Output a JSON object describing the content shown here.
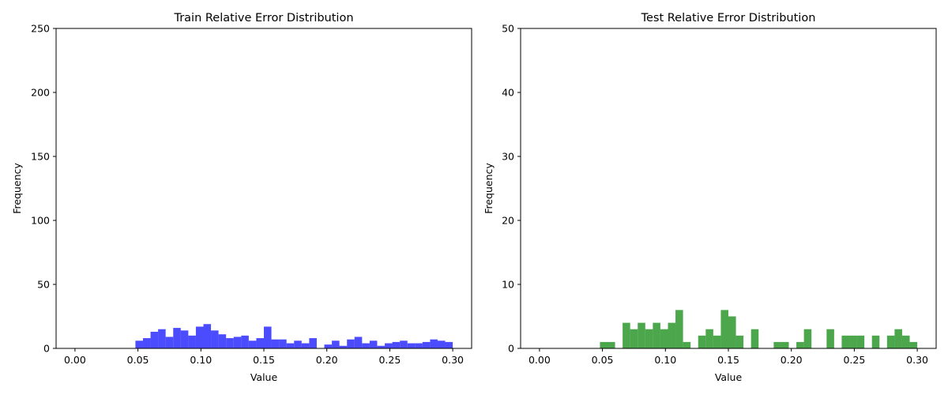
{
  "chart_data": [
    {
      "type": "bar",
      "title": "Train Relative Error Distribution",
      "xlabel": "Value",
      "ylabel": "Frequency",
      "xlim": [
        -0.015,
        0.315
      ],
      "ylim": [
        0,
        250
      ],
      "bar_color": "#0000ff",
      "bar_opacity": 0.7,
      "bin_width": 0.006,
      "x_ticks": [
        "0.00",
        "0.05",
        "0.10",
        "0.15",
        "0.20",
        "0.25",
        "0.30"
      ],
      "x_tick_values": [
        0.0,
        0.05,
        0.1,
        0.15,
        0.2,
        0.25,
        0.3
      ],
      "y_ticks": [
        "0",
        "50",
        "100",
        "150",
        "200",
        "250"
      ],
      "y_tick_values": [
        0,
        50,
        100,
        150,
        200,
        250
      ],
      "bin_starts": [
        0.048,
        0.054,
        0.06,
        0.066,
        0.072,
        0.078,
        0.084,
        0.09,
        0.096,
        0.102,
        0.108,
        0.114,
        0.12,
        0.126,
        0.132,
        0.138,
        0.144,
        0.15,
        0.156,
        0.162,
        0.168,
        0.174,
        0.18,
        0.186,
        0.192,
        0.198,
        0.204,
        0.21,
        0.216,
        0.222,
        0.228,
        0.234,
        0.24,
        0.246,
        0.252,
        0.258,
        0.264,
        0.27,
        0.276,
        0.282,
        0.288,
        0.294
      ],
      "values": [
        6,
        8,
        13,
        15,
        9,
        16,
        14,
        10,
        17,
        19,
        14,
        11,
        8,
        9,
        10,
        6,
        8,
        17,
        7,
        7,
        4,
        6,
        4,
        8,
        0,
        3,
        6,
        2,
        7,
        9,
        4,
        6,
        2,
        4,
        5,
        6,
        4,
        4,
        5,
        7,
        6,
        5
      ]
    },
    {
      "type": "bar",
      "title": "Test Relative Error Distribution",
      "xlabel": "Value",
      "ylabel": "Frequency",
      "xlim": [
        -0.015,
        0.315
      ],
      "ylim": [
        0,
        50
      ],
      "bar_color": "#008000",
      "bar_opacity": 0.7,
      "bin_width": 0.006,
      "x_ticks": [
        "0.00",
        "0.05",
        "0.10",
        "0.15",
        "0.20",
        "0.25",
        "0.30"
      ],
      "x_tick_values": [
        0.0,
        0.05,
        0.1,
        0.15,
        0.2,
        0.25,
        0.3
      ],
      "y_ticks": [
        "0",
        "10",
        "20",
        "30",
        "40",
        "50"
      ],
      "y_tick_values": [
        0,
        10,
        20,
        30,
        40,
        50
      ],
      "bin_starts": [
        0.048,
        0.054,
        0.06,
        0.066,
        0.072,
        0.078,
        0.084,
        0.09,
        0.096,
        0.102,
        0.108,
        0.114,
        0.12,
        0.126,
        0.132,
        0.138,
        0.144,
        0.15,
        0.156,
        0.162,
        0.168,
        0.174,
        0.18,
        0.186,
        0.192,
        0.198,
        0.204,
        0.21,
        0.216,
        0.222,
        0.228,
        0.234,
        0.24,
        0.246,
        0.252,
        0.258,
        0.264,
        0.27,
        0.276,
        0.282,
        0.288,
        0.294
      ],
      "values": [
        1,
        1,
        0,
        4,
        3,
        4,
        3,
        4,
        3,
        4,
        6,
        1,
        0,
        2,
        3,
        2,
        6,
        5,
        2,
        0,
        3,
        0,
        0,
        1,
        1,
        0,
        1,
        3,
        0,
        0,
        3,
        0,
        2,
        2,
        2,
        0,
        2,
        0,
        2,
        3,
        2,
        1
      ]
    }
  ]
}
